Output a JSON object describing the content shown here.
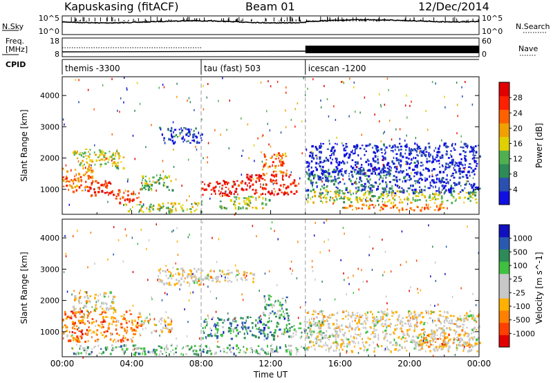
{
  "header": {
    "title": "Kapuskasing (fitACF)",
    "beam": "Beam 01",
    "date": "12/Dec/2014"
  },
  "panel_labels": {
    "nsky": "N.Sky",
    "nsearch": "N.Search",
    "freq_line1": "Freq.",
    "freq_line2": "[MHz]",
    "nave": "Nave",
    "cpid": "CPID"
  },
  "noise_axis": {
    "left_ticks": [
      "10^5",
      "10^0"
    ],
    "right_ticks": [
      "10^5",
      "10^0"
    ]
  },
  "freq_axis": {
    "left_ticks": [
      "18",
      "8"
    ],
    "right_ticks": [
      "60",
      "0"
    ]
  },
  "cpid_segments": [
    {
      "label": "themis -3300",
      "start_hour": 0
    },
    {
      "label": "tau (fast) 503",
      "start_hour": 8
    },
    {
      "label": "icescan -1200",
      "start_hour": 14
    }
  ],
  "colors": {
    "power": [
      "#1010e0",
      "#2a50b0",
      "#2e8b57",
      "#50b050",
      "#e0d000",
      "#f0a000",
      "#ff6000",
      "#ff2000",
      "#e00000"
    ],
    "velocity": [
      "#e00000",
      "#ff4000",
      "#ff8000",
      "#ffb000",
      "#c8c8c8",
      "#c8c8c8",
      "#40c040",
      "#2e8b57",
      "#2a5ab0",
      "#1010c0"
    ]
  },
  "chart_data": [
    {
      "type": "heatmap",
      "quantity": "power",
      "ylabel": "Slant Range [km]",
      "y_ticks": [
        1000,
        2000,
        3000,
        4000
      ],
      "ylim": [
        200,
        4600
      ],
      "xlim": [
        0,
        24
      ],
      "colorbar_label": "Power [dB]",
      "colorbar_ticks": [
        "4",
        "8",
        "12",
        "16",
        "20",
        "24",
        "28"
      ],
      "regions": [
        {
          "t0": 0.0,
          "t1": 1.8,
          "r0": 950,
          "r1": 1700,
          "level": 0.7
        },
        {
          "t0": 1.5,
          "t1": 3.0,
          "r0": 800,
          "r1": 1300,
          "level": 0.85
        },
        {
          "t0": 3.0,
          "t1": 4.5,
          "r0": 600,
          "r1": 1050,
          "level": 0.8
        },
        {
          "t0": 0.5,
          "t1": 3.5,
          "r0": 1700,
          "r1": 2300,
          "level": 0.5
        },
        {
          "t0": 4.5,
          "t1": 6.3,
          "r0": 1000,
          "r1": 1500,
          "level": 0.4
        },
        {
          "t0": 5.5,
          "t1": 8.0,
          "r0": 2500,
          "r1": 3000,
          "level": 0.1
        },
        {
          "t0": 3.5,
          "t1": 8.0,
          "r0": 300,
          "r1": 600,
          "level": 0.45
        },
        {
          "t0": 8.0,
          "t1": 10.5,
          "r0": 800,
          "r1": 1300,
          "level": 0.9
        },
        {
          "t0": 10.5,
          "t1": 13.5,
          "r0": 850,
          "r1": 1500,
          "level": 0.9
        },
        {
          "t0": 11.5,
          "t1": 13.0,
          "r0": 1500,
          "r1": 2200,
          "level": 0.7
        },
        {
          "t0": 9.0,
          "t1": 12.0,
          "r0": 400,
          "r1": 800,
          "level": 0.45
        },
        {
          "t0": 14.0,
          "t1": 19.0,
          "r0": 900,
          "r1": 1700,
          "level": 0.2
        },
        {
          "t0": 14.0,
          "t1": 24.0,
          "r0": 600,
          "r1": 1000,
          "level": 0.45
        },
        {
          "t0": 16.0,
          "t1": 22.0,
          "r0": 350,
          "r1": 550,
          "level": 0.65
        },
        {
          "t0": 19.0,
          "t1": 24.0,
          "r0": 900,
          "r1": 1500,
          "level": 0.1
        },
        {
          "t0": 14.0,
          "t1": 24.0,
          "r0": 1500,
          "r1": 2500,
          "level": 0.05
        }
      ]
    },
    {
      "type": "heatmap",
      "quantity": "velocity",
      "ylabel": "Slant Range [km]",
      "xlabel": "Time UT",
      "x_ticks": [
        "00:00",
        "04:00",
        "08:00",
        "12:00",
        "16:00",
        "20:00",
        "00:00"
      ],
      "y_ticks": [
        1000,
        2000,
        3000,
        4000
      ],
      "ylim": [
        200,
        4600
      ],
      "xlim": [
        0,
        24
      ],
      "colorbar_label": "Velocity [m s^-1]",
      "colorbar_ticks": [
        "-1000",
        "-500",
        "-100",
        "-25",
        "25",
        "100",
        "500",
        "1000"
      ],
      "regions": [
        {
          "t0": 0.0,
          "t1": 4.5,
          "r0": 700,
          "r1": 1700,
          "level": 0.25
        },
        {
          "t0": 0.5,
          "t1": 3.0,
          "r0": 1700,
          "r1": 2300,
          "level": 0.45
        },
        {
          "t0": 4.5,
          "t1": 6.3,
          "r0": 1000,
          "r1": 1500,
          "level": 0.45
        },
        {
          "t0": 5.5,
          "t1": 8.0,
          "r0": 2500,
          "r1": 3100,
          "level": 0.45
        },
        {
          "t0": 8.0,
          "t1": 11.0,
          "r0": 2600,
          "r1": 3000,
          "level": 0.45
        },
        {
          "t0": 8.0,
          "t1": 13.0,
          "r0": 800,
          "r1": 1500,
          "level": 0.75
        },
        {
          "t0": 11.5,
          "t1": 13.0,
          "r0": 1500,
          "r1": 2200,
          "level": 0.68
        },
        {
          "t0": 13.0,
          "t1": 15.0,
          "r0": 800,
          "r1": 1400,
          "level": 0.62
        },
        {
          "t0": 14.0,
          "t1": 24.0,
          "r0": 900,
          "r1": 1700,
          "level": 0.45
        },
        {
          "t0": 14.0,
          "t1": 24.0,
          "r0": 400,
          "r1": 900,
          "level": 0.48
        },
        {
          "t0": 20.5,
          "t1": 23.5,
          "r0": 550,
          "r1": 950,
          "level": 0.3
        },
        {
          "t0": 0.5,
          "t1": 14.0,
          "r0": 300,
          "r1": 600,
          "level": 0.65
        }
      ]
    }
  ]
}
